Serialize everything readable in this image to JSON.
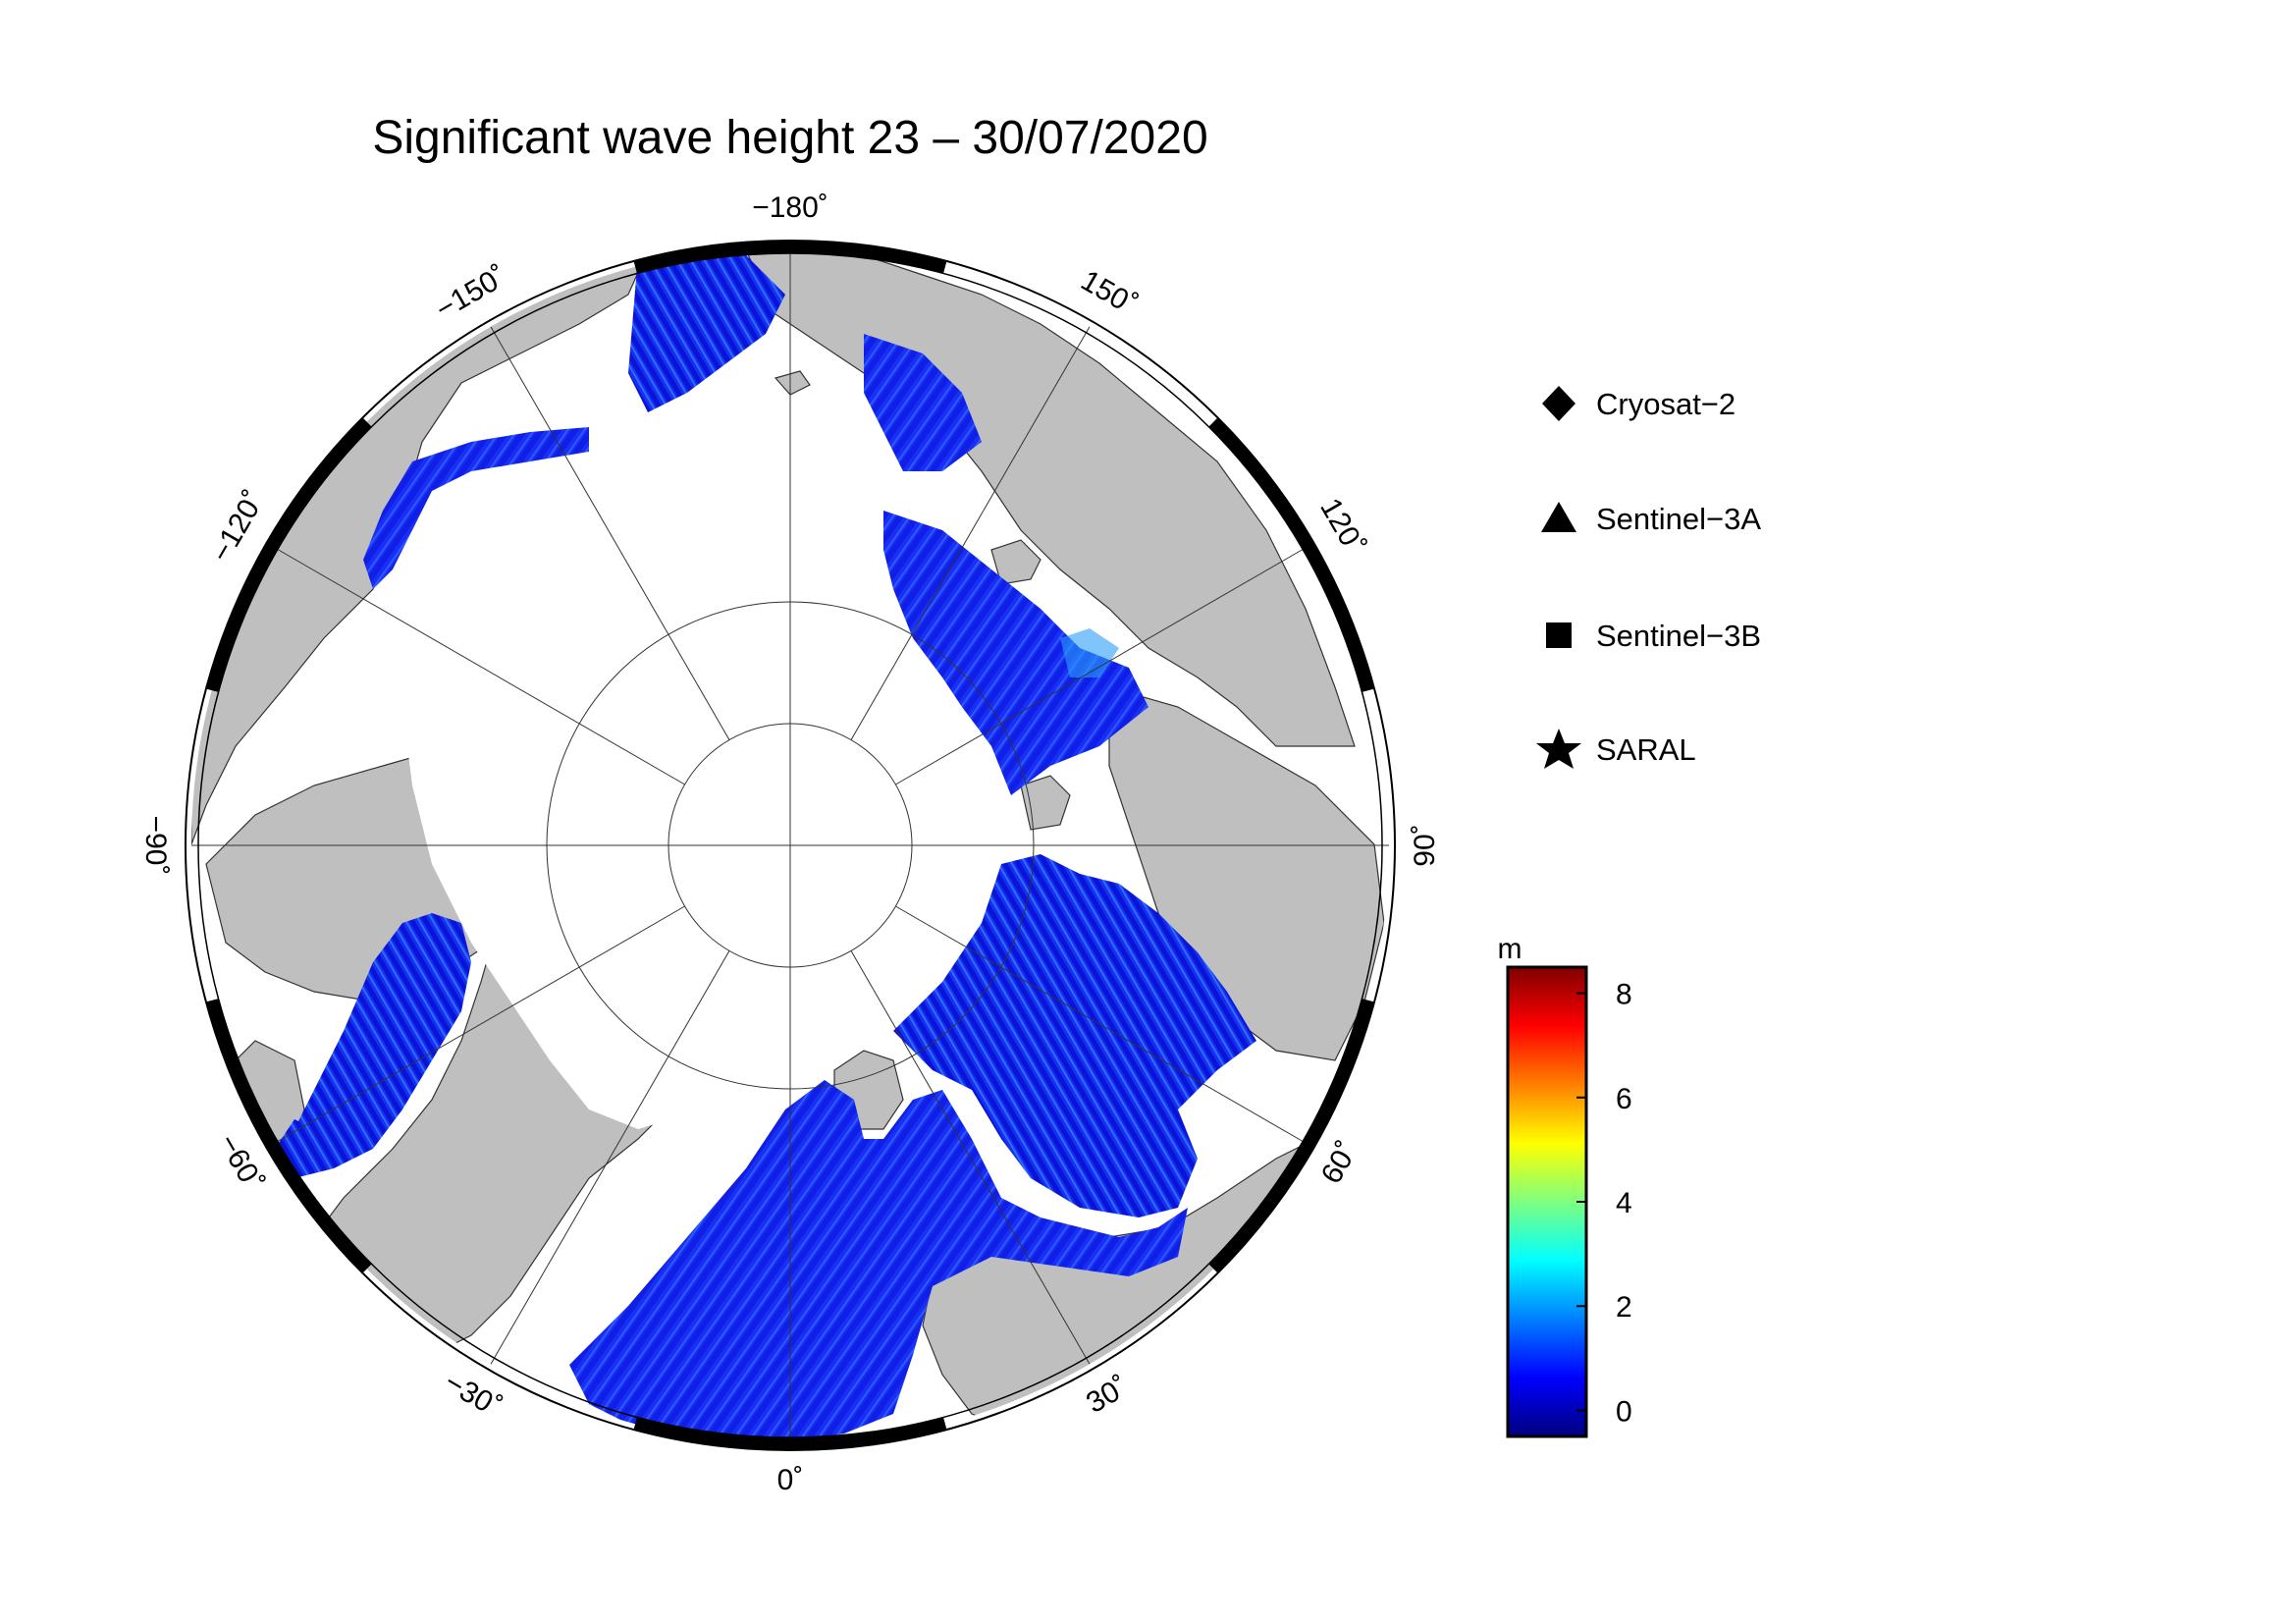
{
  "title": "Significant wave height 23 – 30/07/2020",
  "map": {
    "projection": "polar stereographic, north pole",
    "ocean_color": "#ffffff",
    "land_color": "#bfbfbf",
    "sea_ice_color": "#ffffff",
    "longitude_labels": [
      {
        "lon": -180,
        "text": "−180˚"
      },
      {
        "lon": 150,
        "text": "150˚"
      },
      {
        "lon": 120,
        "text": "120˚"
      },
      {
        "lon": 90,
        "text": "90˚"
      },
      {
        "lon": 60,
        "text": "60˚"
      },
      {
        "lon": 30,
        "text": "30˚"
      },
      {
        "lon": 0,
        "text": "0˚"
      },
      {
        "lon": -30,
        "text": "−30˚"
      },
      {
        "lon": -60,
        "text": "−60˚"
      },
      {
        "lon": -90,
        "text": "−90˚"
      },
      {
        "lon": -120,
        "text": "−120˚"
      },
      {
        "lon": -150,
        "text": "−150˚"
      }
    ]
  },
  "legend": {
    "items": [
      {
        "label": "Cryosat−2",
        "marker": "diamond"
      },
      {
        "label": "Sentinel−3A",
        "marker": "triangle"
      },
      {
        "label": "Sentinel−3B",
        "marker": "square"
      },
      {
        "label": "SARAL",
        "marker": "star"
      }
    ]
  },
  "colorbar": {
    "unit": "m",
    "min": -0.5,
    "max": 8.5,
    "ticks": [
      {
        "value": 0,
        "text": "0"
      },
      {
        "value": 2,
        "text": "2"
      },
      {
        "value": 4,
        "text": "4"
      },
      {
        "value": 6,
        "text": "6"
      },
      {
        "value": 8,
        "text": "8"
      }
    ],
    "colors": [
      "#00007f",
      "#0000ff",
      "#007fff",
      "#00ffff",
      "#7fff7f",
      "#ffff00",
      "#ff7f00",
      "#ff0000",
      "#7f0000"
    ]
  }
}
